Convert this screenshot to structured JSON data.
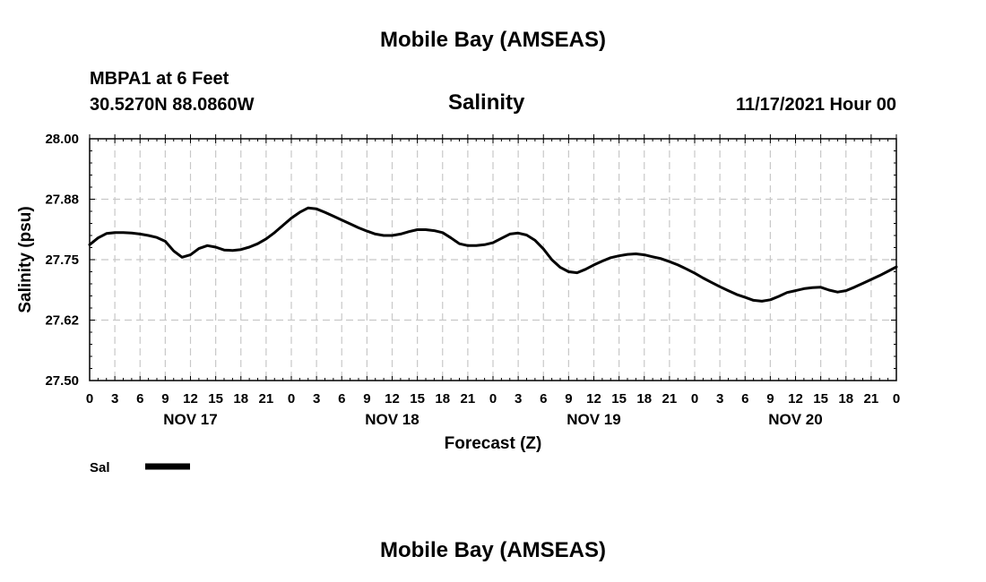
{
  "header": {
    "title": "Mobile Bay (AMSEAS)",
    "station": "MBPA1 at 6 Feet",
    "coords": "30.5270N  88.0860W",
    "subtitle": "Salinity",
    "datetime": "11/17/2021 Hour 00",
    "footer_title": "Mobile Bay (AMSEAS)"
  },
  "chart_data": {
    "type": "line",
    "title": "Salinity",
    "xlabel": "Forecast (Z)",
    "ylabel": "Salinity (psu)",
    "ylim": [
      27.5,
      28.0
    ],
    "xlim": [
      0,
      96
    ],
    "grid": true,
    "y_ticks": [
      "27.50",
      "27.62",
      "27.75",
      "27.88",
      "28.00"
    ],
    "y_tick_values": [
      27.5,
      27.625,
      27.75,
      27.875,
      28.0
    ],
    "x_tick_labels": [
      "0",
      "3",
      "6",
      "9",
      "12",
      "15",
      "18",
      "21",
      "0",
      "3",
      "6",
      "9",
      "12",
      "15",
      "18",
      "21",
      "0",
      "3",
      "6",
      "9",
      "12",
      "15",
      "18",
      "21",
      "0",
      "3",
      "6",
      "9",
      "12",
      "15",
      "18",
      "21",
      "0"
    ],
    "day_labels": [
      {
        "label": "NOV 17",
        "hour": 12
      },
      {
        "label": "NOV 18",
        "hour": 36
      },
      {
        "label": "NOV 19",
        "hour": 60
      },
      {
        "label": "NOV 20",
        "hour": 84
      }
    ],
    "legend": {
      "position": "bottom-left",
      "label": "Sal"
    },
    "series": [
      {
        "name": "Sal",
        "color": "#000000",
        "x": [
          0,
          1,
          2,
          3,
          4,
          5,
          6,
          7,
          8,
          9,
          10,
          11,
          12,
          13,
          14,
          15,
          16,
          17,
          18,
          19,
          20,
          21,
          22,
          23,
          24,
          25,
          26,
          27,
          28,
          29,
          30,
          31,
          32,
          33,
          34,
          35,
          36,
          37,
          38,
          39,
          40,
          41,
          42,
          43,
          44,
          45,
          46,
          47,
          48,
          49,
          50,
          51,
          52,
          53,
          54,
          55,
          56,
          57,
          58,
          59,
          60,
          61,
          62,
          63,
          64,
          65,
          66,
          67,
          68,
          69,
          70,
          71,
          72,
          73,
          74,
          75,
          76,
          77,
          78,
          79,
          80,
          81,
          82,
          83,
          84,
          85,
          86,
          87,
          88,
          89,
          90,
          91,
          92,
          93,
          94,
          95,
          96
        ],
        "values": [
          27.781,
          27.795,
          27.804,
          27.806,
          27.806,
          27.805,
          27.803,
          27.8,
          27.796,
          27.788,
          27.768,
          27.755,
          27.76,
          27.773,
          27.779,
          27.776,
          27.77,
          27.769,
          27.771,
          27.776,
          27.783,
          27.793,
          27.806,
          27.821,
          27.836,
          27.848,
          27.857,
          27.855,
          27.848,
          27.84,
          27.832,
          27.824,
          27.816,
          27.809,
          27.803,
          27.8,
          27.8,
          27.803,
          27.808,
          27.812,
          27.812,
          27.81,
          27.806,
          27.795,
          27.783,
          27.779,
          27.779,
          27.781,
          27.785,
          27.794,
          27.803,
          27.805,
          27.801,
          27.79,
          27.772,
          27.75,
          27.734,
          27.725,
          27.723,
          27.73,
          27.739,
          27.747,
          27.754,
          27.758,
          27.761,
          27.762,
          27.76,
          27.756,
          27.752,
          27.746,
          27.739,
          27.731,
          27.722,
          27.712,
          27.703,
          27.694,
          27.686,
          27.678,
          27.672,
          27.666,
          27.664,
          27.667,
          27.674,
          27.682,
          27.686,
          27.69,
          27.692,
          27.693,
          27.687,
          27.683,
          27.686,
          27.693,
          27.701,
          27.709,
          27.717,
          27.726,
          27.735
        ]
      }
    ]
  }
}
